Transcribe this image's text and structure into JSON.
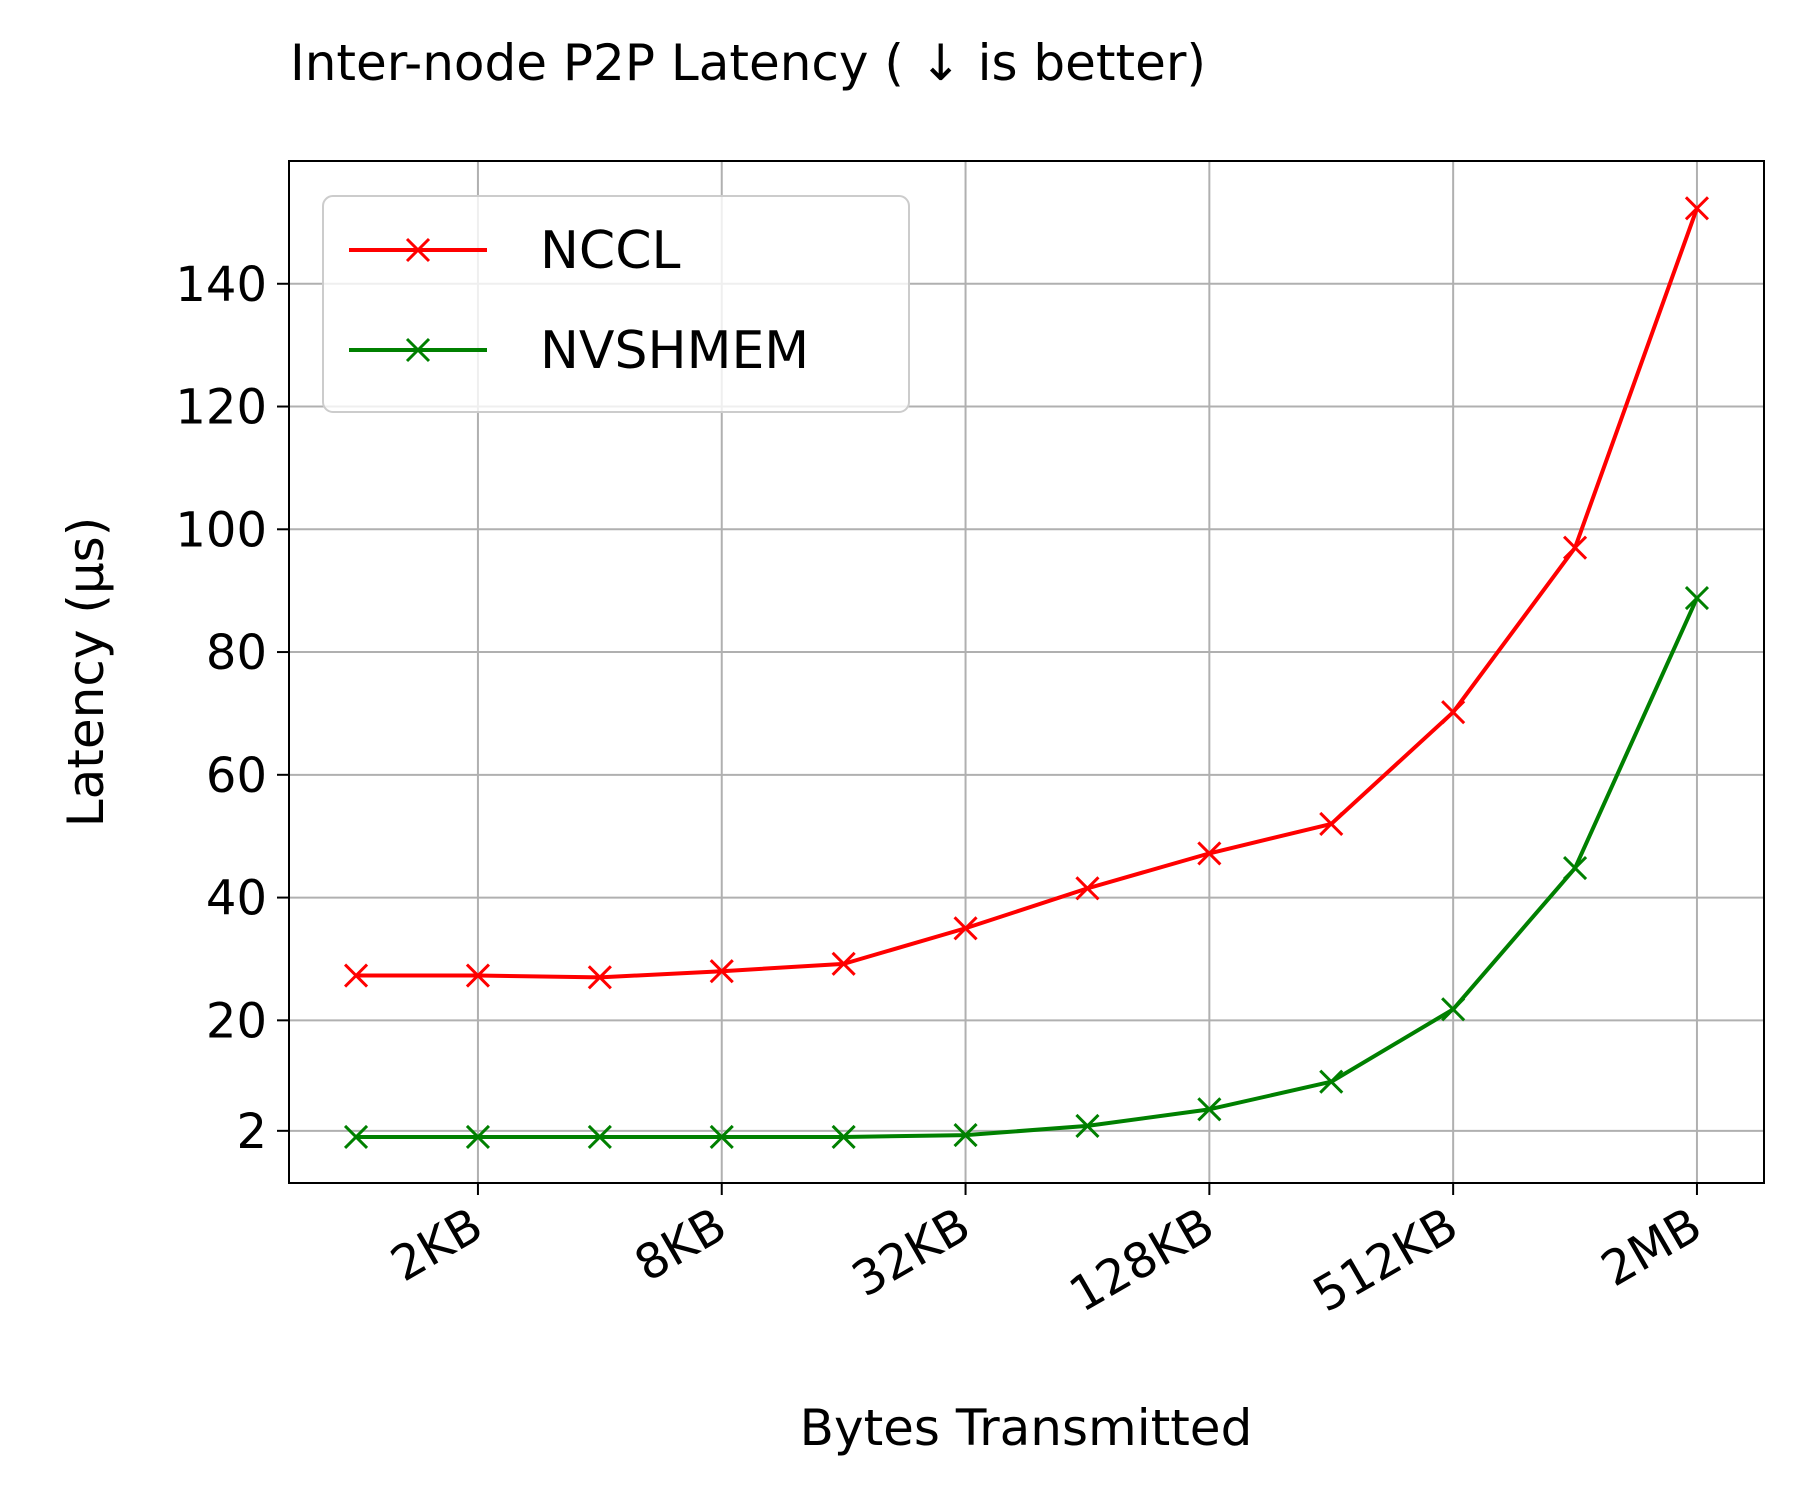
{
  "chart_data": {
    "type": "line",
    "title": "Inter-node P2P Latency ( ↓ is better)",
    "xlabel": "Bytes Transmitted",
    "ylabel": "Latency (μs)",
    "x_index": [
      0,
      1,
      2,
      3,
      4,
      5,
      6,
      7,
      8,
      9,
      10,
      11
    ],
    "x_ticks": [
      {
        "index": 1,
        "label": "2KB"
      },
      {
        "index": 3,
        "label": "8KB"
      },
      {
        "index": 5,
        "label": "32KB"
      },
      {
        "index": 7,
        "label": "128KB"
      },
      {
        "index": 9,
        "label": "512KB"
      },
      {
        "index": 11,
        "label": "2MB"
      }
    ],
    "y_ticks": [
      {
        "value": 2,
        "label": "2"
      },
      {
        "value": 20,
        "label": "20"
      },
      {
        "value": 40,
        "label": "40"
      },
      {
        "value": 60,
        "label": "60"
      },
      {
        "value": 80,
        "label": "80"
      },
      {
        "value": 100,
        "label": "100"
      },
      {
        "value": 120,
        "label": "120"
      },
      {
        "value": 140,
        "label": "140"
      }
    ],
    "ylim": [
      -6.5,
      160
    ],
    "xlim": [
      -0.55,
      11.55
    ],
    "grid": true,
    "legend_position": "top-left",
    "series": [
      {
        "name": "NCCL",
        "color": "#ff0000",
        "marker": "x",
        "values": [
          27.3,
          27.3,
          27.0,
          28.0,
          29.2,
          35.0,
          41.5,
          47.2,
          52.0,
          70.2,
          97.0,
          152.3
        ]
      },
      {
        "name": "NVSHMEM",
        "color": "#008000",
        "marker": "x",
        "values": [
          1.0,
          1.0,
          1.0,
          1.0,
          1.0,
          1.3,
          2.8,
          5.5,
          10.0,
          21.8,
          44.8,
          88.8
        ]
      }
    ]
  }
}
